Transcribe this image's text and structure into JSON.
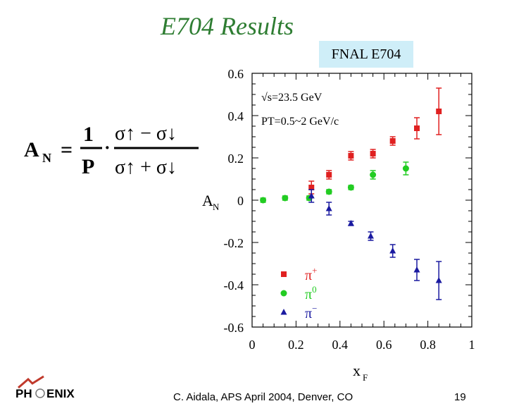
{
  "slide": {
    "title": "E704 Results",
    "experiment_label": "FNAL E704",
    "formula": {
      "lhs": "A",
      "lhs_sub": "N",
      "equals": "=",
      "frac_num": "1",
      "frac_den": "P",
      "dot": "·",
      "num": "σ↑ − σ↓",
      "den": "σ↑ + σ↓"
    },
    "logo_text_left": "PH",
    "logo_text_right": "ENIX",
    "footer_text": "C. Aidala, APS April 2004, Denver, CO",
    "page_number": "19"
  },
  "chart_data": {
    "type": "scatter",
    "title": "",
    "xlabel": "x",
    "xlabel_sub": "F",
    "ylabel": "A",
    "ylabel_sub": "N",
    "xlim": [
      0,
      1
    ],
    "ylim": [
      -0.6,
      0.6
    ],
    "x_ticks": [
      0,
      0.2,
      0.4,
      0.6,
      0.8,
      1
    ],
    "x_tick_labels": [
      "0",
      "0.2",
      "0.4",
      "0.6",
      "0.8",
      "1"
    ],
    "y_ticks": [
      0.6,
      0.4,
      0.2,
      0,
      -0.2,
      -0.4,
      -0.6
    ],
    "y_tick_labels": [
      "0.6",
      "0.4",
      "0.2",
      "0",
      "-0.2",
      "-0.4",
      "-0.6"
    ],
    "grid": false,
    "annotations": [
      "√s=23.5 GeV",
      "PT=0.5~2 GeV/c"
    ],
    "legend_placement": "bottom-left",
    "series": [
      {
        "name": "π+",
        "color": "#e02020",
        "marker": "square",
        "x": [
          0.27,
          0.35,
          0.45,
          0.55,
          0.64,
          0.75,
          0.85
        ],
        "y": [
          0.06,
          0.12,
          0.21,
          0.22,
          0.28,
          0.34,
          0.42
        ],
        "err": [
          0.03,
          0.02,
          0.02,
          0.02,
          0.02,
          0.05,
          0.11
        ]
      },
      {
        "name": "π0",
        "color": "#22cc22",
        "marker": "circle",
        "x": [
          0.05,
          0.15,
          0.26,
          0.35,
          0.45,
          0.55,
          0.7
        ],
        "y": [
          0.0,
          0.01,
          0.01,
          0.04,
          0.06,
          0.12,
          0.15
        ],
        "err": [
          0.01,
          0.01,
          0.01,
          0.01,
          0.01,
          0.02,
          0.03
        ]
      },
      {
        "name": "π−",
        "color": "#1a1aa0",
        "marker": "triangle",
        "x": [
          0.27,
          0.35,
          0.45,
          0.54,
          0.64,
          0.75,
          0.85
        ],
        "y": [
          0.02,
          -0.04,
          -0.11,
          -0.17,
          -0.24,
          -0.33,
          -0.38
        ],
        "err": [
          0.03,
          0.03,
          0.01,
          0.02,
          0.03,
          0.05,
          0.09
        ]
      }
    ]
  }
}
